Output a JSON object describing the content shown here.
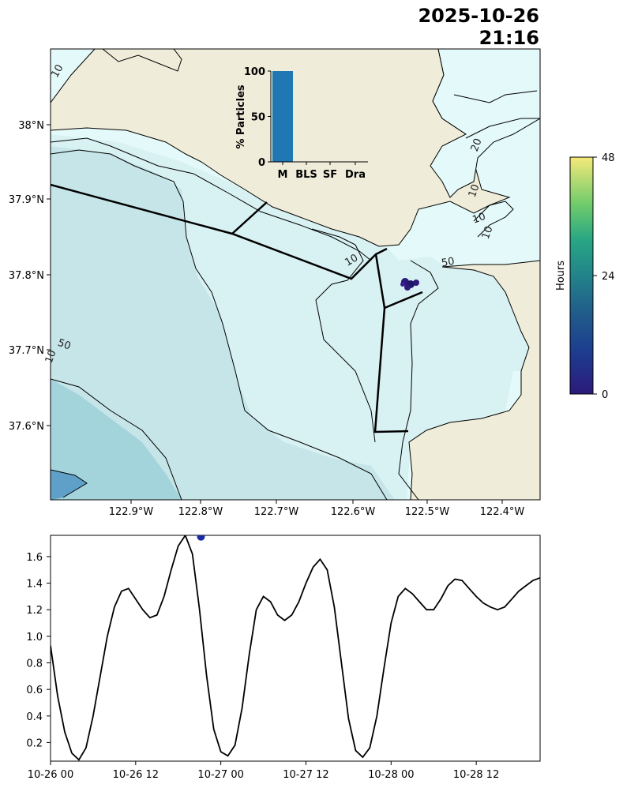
{
  "header": {
    "date": "2025-10-26",
    "time": "21:16"
  },
  "map": {
    "lon_ticks": [
      "122.9°W",
      "122.8°W",
      "122.7°W",
      "122.6°W",
      "122.5°W",
      "122.4°W"
    ],
    "lat_ticks": [
      "38°N",
      "37.9°N",
      "37.8°N",
      "37.7°N",
      "37.6°N"
    ],
    "contour_labels": [
      "10",
      "20",
      "10",
      "10",
      "10",
      "10",
      "50",
      "50",
      "10"
    ],
    "colors": {
      "land": "#efecd9",
      "shallow": "#e4f9f9",
      "mid": "#d8f1f3",
      "deep": "#c6e5e8",
      "deeper": "#a3d4dc",
      "deepest": "#5fa0c9"
    }
  },
  "colorbar": {
    "label": "Hours",
    "ticks": [
      "0",
      "24",
      "48"
    ],
    "range": [
      0,
      48
    ]
  },
  "inset": {
    "ylabel": "% Particles",
    "categories": [
      "M",
      "BLS",
      "SF",
      "Dra"
    ],
    "values": [
      100,
      0,
      0,
      0
    ],
    "y_ticks": [
      "0",
      "50",
      "100"
    ],
    "color": "#1f77b4"
  },
  "chart_data": {
    "type": "line",
    "x_ticks": [
      "10-26 00",
      "10-26 12",
      "10-27 00",
      "10-27 12",
      "10-28 00",
      "10-28 12"
    ],
    "y_ticks": [
      "0.2",
      "0.4",
      "0.6",
      "0.8",
      "1.0",
      "1.2",
      "1.4",
      "1.6"
    ],
    "ylim": [
      0.06,
      1.76
    ],
    "xlim": [
      0,
      69
    ],
    "x_hours": [
      0,
      1,
      2,
      3,
      4,
      5,
      6,
      7,
      8,
      9,
      10,
      11,
      12,
      13,
      14,
      15,
      16,
      17,
      18,
      19,
      20,
      21,
      22,
      23,
      24,
      25,
      26,
      27,
      28,
      29,
      30,
      31,
      32,
      33,
      34,
      35,
      36,
      37,
      38,
      39,
      40,
      41,
      42,
      43,
      44,
      45,
      46,
      47,
      48,
      49,
      50,
      51,
      52,
      53,
      54,
      55,
      56,
      57,
      58,
      59,
      60,
      61,
      62,
      63,
      64,
      65,
      66,
      67,
      68,
      69
    ],
    "values": [
      0.93,
      0.55,
      0.28,
      0.12,
      0.07,
      0.16,
      0.4,
      0.7,
      1.0,
      1.22,
      1.34,
      1.36,
      1.28,
      1.2,
      1.14,
      1.16,
      1.3,
      1.5,
      1.68,
      1.76,
      1.62,
      1.2,
      0.7,
      0.3,
      0.13,
      0.1,
      0.18,
      0.46,
      0.86,
      1.2,
      1.3,
      1.26,
      1.16,
      1.12,
      1.16,
      1.26,
      1.4,
      1.52,
      1.58,
      1.5,
      1.22,
      0.8,
      0.38,
      0.14,
      0.09,
      0.16,
      0.4,
      0.76,
      1.1,
      1.3,
      1.36,
      1.32,
      1.26,
      1.2,
      1.2,
      1.28,
      1.38,
      1.43,
      1.42,
      1.36,
      1.3,
      1.25,
      1.22,
      1.2,
      1.22,
      1.28,
      1.34,
      1.38,
      1.42,
      1.44
    ],
    "marker": {
      "x_hour": 21.2,
      "y": 1.75,
      "color": "#1a2aa0"
    },
    "line_color": "#000000"
  }
}
